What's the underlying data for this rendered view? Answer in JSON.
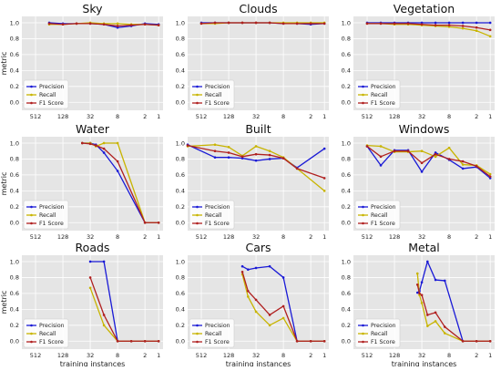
{
  "colors": {
    "precision": "#1a1ad6",
    "recall": "#c8b400",
    "f1": "#b02020",
    "plot_bg": "#e5e5e5",
    "grid": "#ffffff"
  },
  "chart_data": [
    {
      "type": "line",
      "title": "Sky",
      "ylabel": "metric",
      "xlabel": "",
      "xscale": "log2-reversed",
      "xticks": [
        512,
        128,
        32,
        8,
        2,
        1
      ],
      "xtick_labels": [
        "512",
        "128",
        "32",
        "8",
        "2",
        "1"
      ],
      "xlim": [
        1024,
        0.8
      ],
      "yticks": [
        "0.0",
        "0.2",
        "0.4",
        "0.6",
        "0.8",
        "1.0"
      ],
      "ylim": [
        -0.1,
        1.08
      ],
      "legend": "lower-left",
      "series": [
        {
          "name": "Precision",
          "x": [
            256,
            128,
            64,
            32,
            16,
            8,
            4,
            2,
            1
          ],
          "values": [
            1.0,
            0.99,
            0.99,
            0.99,
            0.98,
            0.94,
            0.96,
            0.99,
            0.98
          ]
        },
        {
          "name": "Recall",
          "x": [
            256,
            128,
            64,
            32,
            16,
            8,
            4,
            2,
            1
          ],
          "values": [
            0.98,
            0.98,
            0.99,
            1.0,
            0.99,
            0.99,
            0.98,
            0.98,
            0.97
          ]
        },
        {
          "name": "F1 Score",
          "x": [
            256,
            128,
            64,
            32,
            16,
            8,
            4,
            2,
            1
          ],
          "values": [
            0.99,
            0.98,
            0.99,
            0.99,
            0.98,
            0.96,
            0.97,
            0.98,
            0.97
          ]
        }
      ]
    },
    {
      "type": "line",
      "title": "Clouds",
      "ylabel": "",
      "xlabel": "",
      "xscale": "log2-reversed",
      "xticks": [
        512,
        128,
        32,
        8,
        2,
        1
      ],
      "xtick_labels": [
        "512",
        "128",
        "32",
        "8",
        "2",
        "1"
      ],
      "xlim": [
        1024,
        0.8
      ],
      "yticks": [
        "0.0",
        "0.2",
        "0.4",
        "0.6",
        "0.8",
        "1.0"
      ],
      "ylim": [
        -0.1,
        1.08
      ],
      "legend": "lower-left",
      "series": [
        {
          "name": "Precision",
          "x": [
            512,
            256,
            128,
            64,
            32,
            16,
            8,
            4,
            2,
            1
          ],
          "values": [
            1.0,
            1.0,
            1.0,
            1.0,
            1.0,
            1.0,
            0.99,
            0.99,
            0.98,
            0.99
          ]
        },
        {
          "name": "Recall",
          "x": [
            512,
            256,
            128,
            64,
            32,
            16,
            8,
            4,
            2,
            1
          ],
          "values": [
            0.99,
            0.99,
            1.0,
            1.0,
            1.0,
            1.0,
            1.0,
            1.0,
            1.0,
            1.0
          ]
        },
        {
          "name": "F1 Score",
          "x": [
            512,
            256,
            128,
            64,
            32,
            16,
            8,
            4,
            2,
            1
          ],
          "values": [
            0.99,
            1.0,
            1.0,
            1.0,
            1.0,
            1.0,
            0.99,
            0.99,
            0.99,
            0.99
          ]
        }
      ]
    },
    {
      "type": "line",
      "title": "Vegetation",
      "ylabel": "",
      "xlabel": "",
      "xscale": "log2-reversed",
      "xticks": [
        512,
        128,
        32,
        8,
        2,
        1
      ],
      "xtick_labels": [
        "512",
        "128",
        "32",
        "8",
        "2",
        "1"
      ],
      "xlim": [
        1024,
        0.8
      ],
      "yticks": [
        "0.0",
        "0.2",
        "0.4",
        "0.6",
        "0.8",
        "1.0"
      ],
      "ylim": [
        -0.1,
        1.08
      ],
      "legend": "lower-left",
      "series": [
        {
          "name": "Precision",
          "x": [
            512,
            256,
            128,
            64,
            32,
            16,
            8,
            4,
            2,
            1
          ],
          "values": [
            1.0,
            1.0,
            1.0,
            1.0,
            1.0,
            1.0,
            1.0,
            1.0,
            1.0,
            1.0
          ]
        },
        {
          "name": "Recall",
          "x": [
            512,
            256,
            128,
            64,
            32,
            16,
            8,
            4,
            2,
            1
          ],
          "values": [
            0.99,
            0.99,
            0.98,
            0.98,
            0.97,
            0.96,
            0.95,
            0.93,
            0.9,
            0.83
          ]
        },
        {
          "name": "F1 Score",
          "x": [
            512,
            256,
            128,
            64,
            32,
            16,
            8,
            4,
            2,
            1
          ],
          "values": [
            0.99,
            0.99,
            0.99,
            0.99,
            0.98,
            0.97,
            0.97,
            0.96,
            0.94,
            0.91
          ]
        }
      ]
    },
    {
      "type": "line",
      "title": "Water",
      "ylabel": "metric",
      "xlabel": "",
      "xscale": "log2-reversed",
      "xticks": [
        512,
        128,
        32,
        8,
        2,
        1
      ],
      "xtick_labels": [
        "512",
        "128",
        "32",
        "8",
        "2",
        "1"
      ],
      "xlim": [
        1024,
        0.8
      ],
      "yticks": [
        "0.0",
        "0.2",
        "0.4",
        "0.6",
        "0.8",
        "1.0"
      ],
      "ylim": [
        -0.1,
        1.08
      ],
      "legend": "lower-left",
      "series": [
        {
          "name": "Precision",
          "x": [
            48,
            32,
            24,
            16,
            8,
            2,
            1
          ],
          "values": [
            1.0,
            1.0,
            0.98,
            0.88,
            0.65,
            0.0,
            0.0
          ]
        },
        {
          "name": "Recall",
          "x": [
            48,
            32,
            24,
            16,
            8,
            2,
            1
          ],
          "values": [
            1.0,
            1.0,
            0.96,
            1.0,
            1.0,
            0.0,
            0.0
          ]
        },
        {
          "name": "F1 Score",
          "x": [
            48,
            32,
            24,
            16,
            8,
            2,
            1
          ],
          "values": [
            1.0,
            0.99,
            0.97,
            0.93,
            0.77,
            0.0,
            0.0
          ]
        }
      ]
    },
    {
      "type": "line",
      "title": "Built",
      "ylabel": "",
      "xlabel": "",
      "xscale": "log2-reversed",
      "xticks": [
        512,
        128,
        32,
        8,
        2,
        1
      ],
      "xtick_labels": [
        "512",
        "128",
        "32",
        "8",
        "2",
        "1"
      ],
      "xlim": [
        1024,
        0.8
      ],
      "yticks": [
        "0.0",
        "0.2",
        "0.4",
        "0.6",
        "0.8",
        "1.0"
      ],
      "ylim": [
        -0.1,
        1.08
      ],
      "legend": "lower-left",
      "series": [
        {
          "name": "Precision",
          "x": [
            1024,
            256,
            128,
            64,
            32,
            16,
            8,
            4,
            1
          ],
          "values": [
            0.98,
            0.82,
            0.82,
            0.81,
            0.78,
            0.8,
            0.81,
            0.69,
            0.93
          ]
        },
        {
          "name": "Recall",
          "x": [
            1024,
            256,
            128,
            64,
            32,
            16,
            8,
            4,
            1
          ],
          "values": [
            0.96,
            0.98,
            0.95,
            0.84,
            0.96,
            0.9,
            0.82,
            0.68,
            0.4
          ]
        },
        {
          "name": "F1 Score",
          "x": [
            1024,
            256,
            128,
            64,
            32,
            16,
            8,
            4,
            1
          ],
          "values": [
            0.97,
            0.9,
            0.88,
            0.83,
            0.86,
            0.85,
            0.81,
            0.68,
            0.56
          ]
        }
      ]
    },
    {
      "type": "line",
      "title": "Windows",
      "ylabel": "",
      "xlabel": "",
      "xscale": "log2-reversed",
      "xticks": [
        512,
        128,
        32,
        8,
        2,
        1
      ],
      "xtick_labels": [
        "512",
        "128",
        "32",
        "8",
        "2",
        "1"
      ],
      "xlim": [
        1024,
        0.8
      ],
      "yticks": [
        "0.0",
        "0.2",
        "0.4",
        "0.6",
        "0.8",
        "1.0"
      ],
      "ylim": [
        -0.1,
        1.08
      ],
      "legend": "lower-left",
      "series": [
        {
          "name": "Precision",
          "x": [
            512,
            256,
            128,
            64,
            32,
            16,
            8,
            4,
            2,
            1
          ],
          "values": [
            0.96,
            0.72,
            0.91,
            0.91,
            0.64,
            0.88,
            0.79,
            0.68,
            0.7,
            0.56
          ]
        },
        {
          "name": "Recall",
          "x": [
            512,
            256,
            128,
            64,
            32,
            16,
            8,
            4,
            2,
            1
          ],
          "values": [
            0.97,
            0.96,
            0.89,
            0.89,
            0.9,
            0.83,
            0.94,
            0.73,
            0.72,
            0.61
          ]
        },
        {
          "name": "F1 Score",
          "x": [
            512,
            256,
            128,
            64,
            32,
            16,
            8,
            4,
            2,
            1
          ],
          "values": [
            0.96,
            0.83,
            0.9,
            0.9,
            0.75,
            0.86,
            0.8,
            0.77,
            0.71,
            0.58
          ]
        }
      ]
    },
    {
      "type": "line",
      "title": "Roads",
      "ylabel": "metric",
      "xlabel": "training instances",
      "xscale": "log2-reversed",
      "xticks": [
        512,
        128,
        32,
        8,
        2,
        1
      ],
      "xtick_labels": [
        "512",
        "128",
        "32",
        "8",
        "2",
        "1"
      ],
      "xlim": [
        1024,
        0.8
      ],
      "yticks": [
        "0.0",
        "0.2",
        "0.4",
        "0.6",
        "0.8",
        "1.0"
      ],
      "ylim": [
        -0.1,
        1.08
      ],
      "legend": "lower-left",
      "series": [
        {
          "name": "Precision",
          "x": [
            32,
            16,
            8,
            4,
            2,
            1
          ],
          "values": [
            1.0,
            1.0,
            0.0,
            0.0,
            0.0,
            0.0
          ]
        },
        {
          "name": "Recall",
          "x": [
            32,
            16,
            8,
            4,
            2,
            1
          ],
          "values": [
            0.67,
            0.2,
            0.0,
            0.0,
            0.0,
            0.0
          ]
        },
        {
          "name": "F1 Score",
          "x": [
            32,
            16,
            8,
            4,
            2,
            1
          ],
          "values": [
            0.8,
            0.33,
            0.0,
            0.0,
            0.0,
            0.0
          ]
        }
      ]
    },
    {
      "type": "line",
      "title": "Cars",
      "ylabel": "",
      "xlabel": "training instances",
      "xscale": "log2-reversed",
      "xticks": [
        512,
        128,
        32,
        8,
        2,
        1
      ],
      "xtick_labels": [
        "512",
        "128",
        "32",
        "8",
        "2",
        "1"
      ],
      "xlim": [
        1024,
        0.8
      ],
      "yticks": [
        "0.0",
        "0.2",
        "0.4",
        "0.6",
        "0.8",
        "1.0"
      ],
      "ylim": [
        -0.1,
        1.08
      ],
      "legend": "lower-left",
      "series": [
        {
          "name": "Precision",
          "x": [
            64,
            48,
            32,
            16,
            8,
            4,
            2,
            1
          ],
          "values": [
            0.94,
            0.9,
            0.92,
            0.94,
            0.8,
            0.0,
            0.0,
            0.0
          ]
        },
        {
          "name": "Recall",
          "x": [
            64,
            48,
            32,
            16,
            8,
            4,
            2,
            1
          ],
          "values": [
            0.84,
            0.56,
            0.37,
            0.2,
            0.29,
            0.0,
            0.0,
            0.0
          ]
        },
        {
          "name": "F1 Score",
          "x": [
            64,
            48,
            32,
            16,
            8,
            4,
            2,
            1
          ],
          "values": [
            0.87,
            0.63,
            0.52,
            0.33,
            0.44,
            0.0,
            0.0,
            0.0
          ]
        }
      ]
    },
    {
      "type": "line",
      "title": "Metal",
      "ylabel": "",
      "xlabel": "training instances",
      "xscale": "log2-reversed",
      "xticks": [
        512,
        128,
        32,
        8,
        2,
        1
      ],
      "xtick_labels": [
        "512",
        "128",
        "32",
        "8",
        "2",
        "1"
      ],
      "xlim": [
        1024,
        0.8
      ],
      "yticks": [
        "0.0",
        "0.2",
        "0.4",
        "0.6",
        "0.8",
        "1.0"
      ],
      "ylim": [
        -0.1,
        1.08
      ],
      "legend": "lower-left",
      "series": [
        {
          "name": "Precision",
          "x": [
            40,
            36,
            32,
            24,
            16,
            10,
            4,
            2,
            1
          ],
          "values": [
            0.61,
            0.63,
            0.74,
            1.0,
            0.77,
            0.76,
            0.0,
            0.0,
            0.0
          ]
        },
        {
          "name": "Recall",
          "x": [
            40,
            36,
            32,
            24,
            16,
            10,
            4,
            2,
            1
          ],
          "values": [
            0.85,
            0.58,
            0.48,
            0.19,
            0.25,
            0.1,
            0.0,
            0.0,
            0.0
          ]
        },
        {
          "name": "F1 Score",
          "x": [
            40,
            36,
            32,
            24,
            16,
            10,
            4,
            2,
            1
          ],
          "values": [
            0.71,
            0.6,
            0.58,
            0.33,
            0.36,
            0.18,
            0.0,
            0.0,
            0.0
          ]
        }
      ]
    }
  ]
}
